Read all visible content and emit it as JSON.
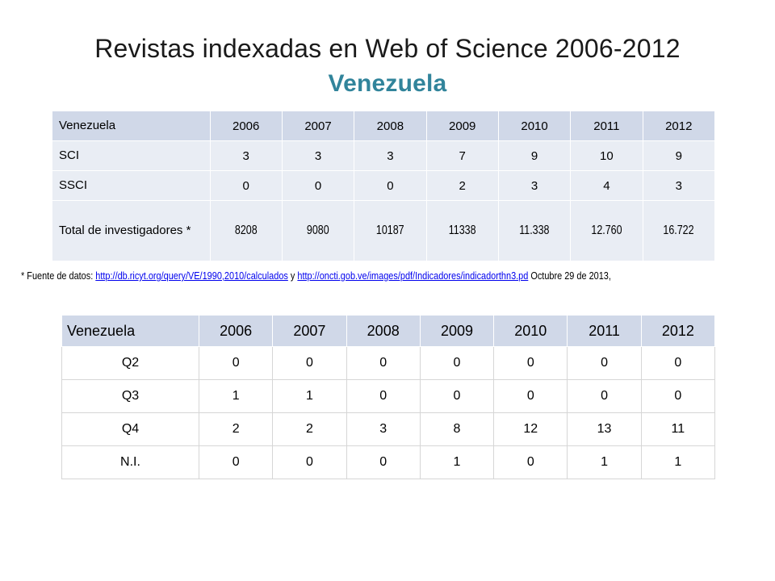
{
  "title": {
    "line1": "Revistas indexadas en Web of Science 2006-2012",
    "line2": "Venezuela"
  },
  "table1": {
    "header": [
      "Venezuela",
      "2006",
      "2007",
      "2008",
      "2009",
      "2010",
      "2011",
      "2012"
    ],
    "rows": [
      {
        "label": "SCI",
        "values": [
          "3",
          "3",
          "3",
          "7",
          "9",
          "10",
          "9"
        ]
      },
      {
        "label": "SSCI",
        "values": [
          "0",
          "0",
          "0",
          "2",
          "3",
          "4",
          "3"
        ]
      },
      {
        "label": "Total de investigadores *",
        "values": [
          "8208",
          "9080",
          "10187",
          "11338",
          "11.338",
          "12.760",
          "16.722"
        ]
      }
    ]
  },
  "footnote": {
    "prefix": "* Fuente de datos: ",
    "link1": "http://db.ricyt.org/query/VE/1990,2010/calculados",
    "mid": " y  ",
    "link2": "http://oncti.gob.ve/images/pdf/Indicadores/indicadorthn3.pd",
    "suffix": " Octubre 29 de 2013,"
  },
  "table2": {
    "header": [
      "Venezuela",
      "2006",
      "2007",
      "2008",
      "2009",
      "2010",
      "2011",
      "2012"
    ],
    "rows": [
      {
        "label": "Q2",
        "values": [
          "0",
          "0",
          "0",
          "0",
          "0",
          "0",
          "0"
        ]
      },
      {
        "label": "Q3",
        "values": [
          "1",
          "1",
          "0",
          "0",
          "0",
          "0",
          "0"
        ]
      },
      {
        "label": "Q4",
        "values": [
          "2",
          "2",
          "3",
          "8",
          "12",
          "13",
          "11"
        ]
      },
      {
        "label": "N.I.",
        "values": [
          "0",
          "0",
          "0",
          "1",
          "0",
          "1",
          "1"
        ]
      }
    ]
  }
}
